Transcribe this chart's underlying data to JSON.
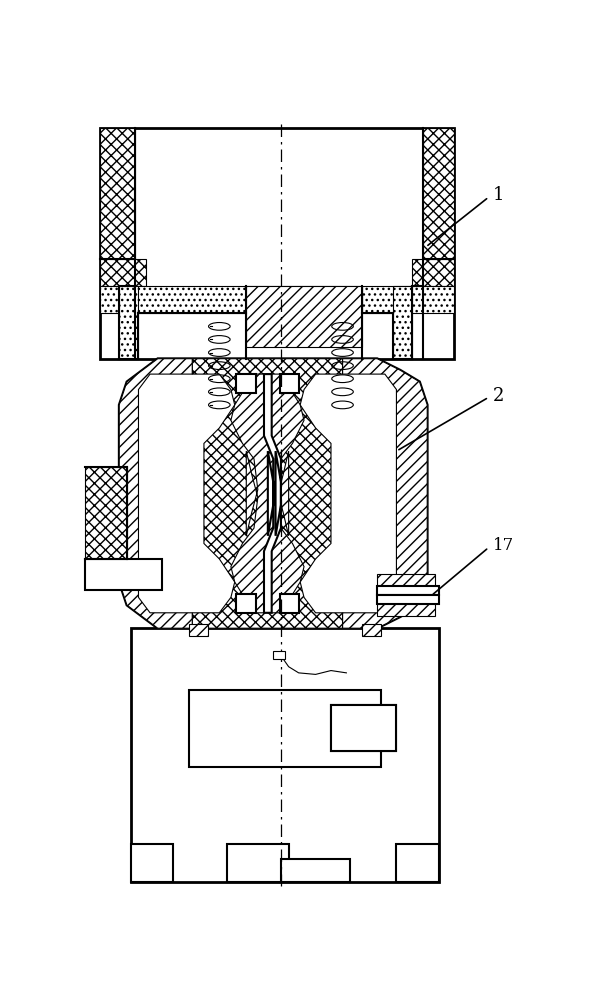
{
  "background_color": "#ffffff",
  "label_1": "1",
  "label_2": "2",
  "label_17": "17",
  "fig_width": 6.03,
  "fig_height": 10.0,
  "dpi": 100
}
